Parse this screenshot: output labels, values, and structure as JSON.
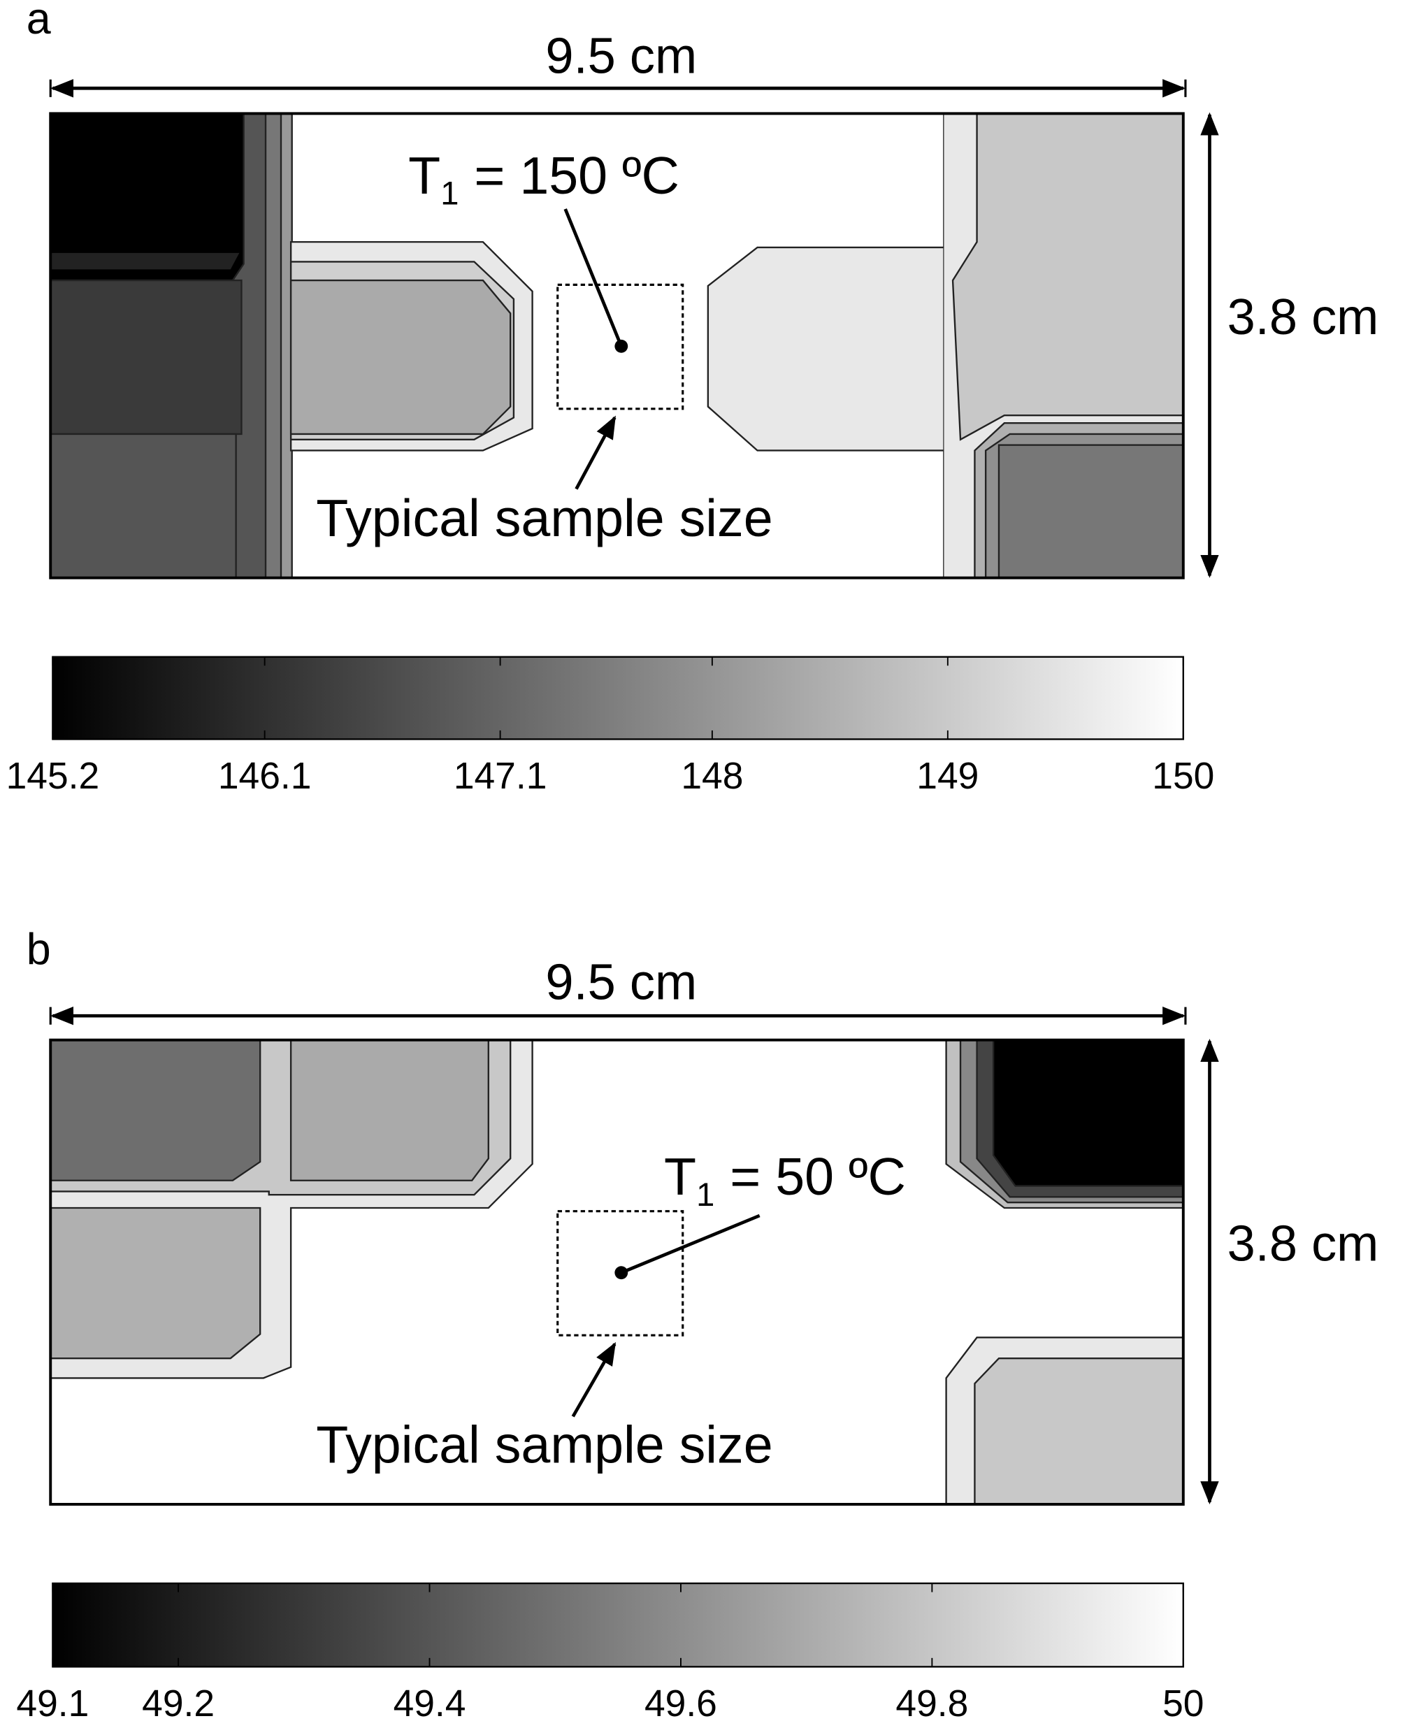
{
  "panels": [
    {
      "label": "a",
      "width_label": "9.5 cm",
      "height_label": "3.8 cm",
      "annotation": {
        "symbol": "T",
        "subscript": "1",
        "text": "= 150 ºC"
      },
      "sample_label": "Typical sample size",
      "colorbar": {
        "lim": [
          145.2,
          150
        ],
        "ticks": [
          145.2,
          146.1,
          147.1,
          148,
          149,
          150
        ]
      }
    },
    {
      "label": "b",
      "width_label": "9.5 cm",
      "height_label": "3.8 cm",
      "annotation": {
        "symbol": "T",
        "subscript": "1",
        "text": "= 50 ºC"
      },
      "sample_label": "Typical sample size",
      "colorbar": {
        "lim": [
          49.1,
          50
        ],
        "ticks": [
          49.1,
          49.2,
          49.4,
          49.6,
          49.8,
          50
        ]
      }
    }
  ]
}
